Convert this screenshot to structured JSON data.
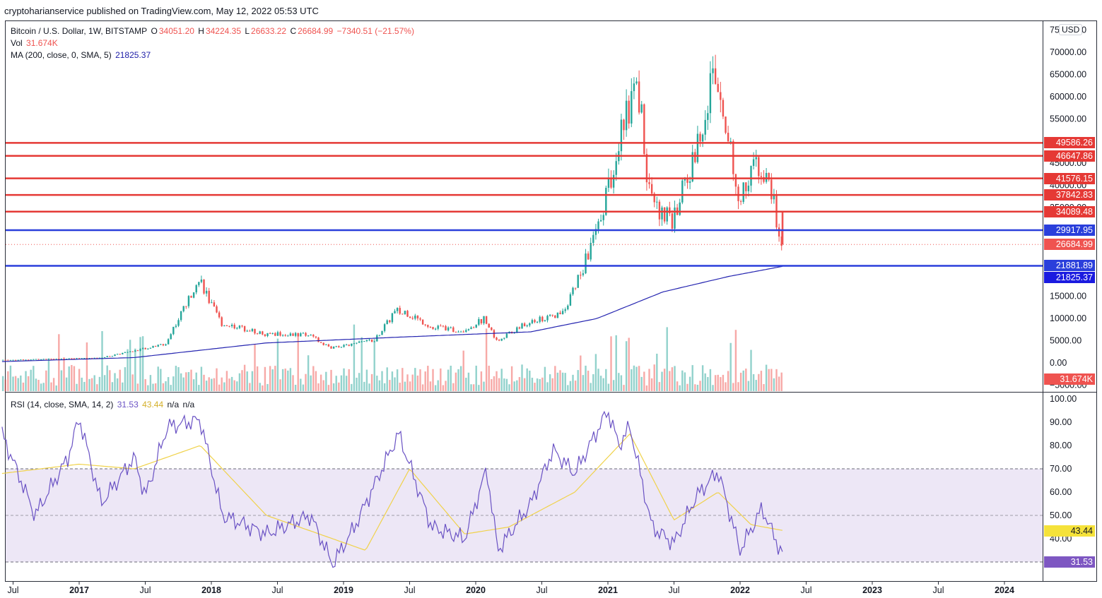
{
  "publisher": "cryptoharianservice published on TradingView.com, May 12, 2022 05:53 UTC",
  "currency": "USD",
  "legend": {
    "symbol": "Bitcoin / U.S. Dollar, 1W, BITSTAMP",
    "o_label": "O",
    "o": "34051.20",
    "h_label": "H",
    "h": "34224.35",
    "l_label": "L",
    "l": "26633.22",
    "c_label": "C",
    "c": "26684.99",
    "change": "−7340.51 (−21.57%)",
    "vol_label": "Vol",
    "vol": "31.674K",
    "ma_label": "MA (200, close, 0, SMA, 5)",
    "ma": "21825.37"
  },
  "rsi_legend": {
    "label": "RSI (14, close, SMA, 14, 2)",
    "rsi": "31.53",
    "sma": "43.44",
    "na1": "n/a",
    "na2": "n/a"
  },
  "price_axis": [
    "75000.00",
    "70000.00",
    "65000.00",
    "60000.00",
    "55000.00",
    "45000.00",
    "40000.00",
    "35000.00",
    "15000.00",
    "10000.00",
    "5000.00",
    "0.00",
    "−5000.00"
  ],
  "rsi_axis": [
    "100.00",
    "90.00",
    "80.00",
    "70.00",
    "60.00",
    "50.00",
    "40.00"
  ],
  "time_axis": [
    {
      "label": "Jul",
      "bold": false
    },
    {
      "label": "2017",
      "bold": true
    },
    {
      "label": "Jul",
      "bold": false
    },
    {
      "label": "2018",
      "bold": true
    },
    {
      "label": "Jul",
      "bold": false
    },
    {
      "label": "2019",
      "bold": true
    },
    {
      "label": "Jul",
      "bold": false
    },
    {
      "label": "2020",
      "bold": true
    },
    {
      "label": "Jul",
      "bold": false
    },
    {
      "label": "2021",
      "bold": true
    },
    {
      "label": "Jul",
      "bold": false
    },
    {
      "label": "2022",
      "bold": true
    },
    {
      "label": "Jul",
      "bold": false
    },
    {
      "label": "2023",
      "bold": true
    },
    {
      "label": "Jul",
      "bold": false
    },
    {
      "label": "2024",
      "bold": true
    }
  ],
  "colors": {
    "up": "#26a69a",
    "down": "#ef5350",
    "level_red": "#e53935",
    "level_blue": "#2a3fdb",
    "ma": "#2424b0",
    "rsi": "#6a52c4",
    "rsi_sma": "#f0d24a",
    "rsi_band": "#ede7f6"
  },
  "chart_data": {
    "type": "candlestick",
    "title": "Bitcoin / U.S. Dollar, 1W, BITSTAMP",
    "ylim": [
      -5000,
      75000
    ],
    "levels": [
      {
        "value": 49586.26,
        "label": "49586.26",
        "color": "red"
      },
      {
        "value": 46647.86,
        "label": "46647.86",
        "color": "red"
      },
      {
        "value": 41576.15,
        "label": "41576.15",
        "color": "red"
      },
      {
        "value": 37842.83,
        "label": "37842.83",
        "color": "red"
      },
      {
        "value": 34089.48,
        "label": "34089.48",
        "color": "red"
      },
      {
        "value": 29917.95,
        "label": "29917.95",
        "color": "blue"
      },
      {
        "value": 21881.89,
        "label": "21881.89",
        "color": "blue"
      }
    ],
    "last_price": {
      "value": 26684.99,
      "label": "26684.99"
    },
    "ma_last": {
      "value": 21825.37,
      "label": "21825.37"
    },
    "vol_last": {
      "label": "31.674K"
    },
    "price_path": [
      [
        "2016-06",
        650
      ],
      [
        "2016-12",
        960
      ],
      [
        "2017-03",
        1100
      ],
      [
        "2017-06",
        2600
      ],
      [
        "2017-09",
        4300
      ],
      [
        "2017-12",
        19000
      ],
      [
        "2018-02",
        9000
      ],
      [
        "2018-06",
        6500
      ],
      [
        "2018-10",
        6400
      ],
      [
        "2018-12",
        3300
      ],
      [
        "2019-04",
        5200
      ],
      [
        "2019-06",
        12000
      ],
      [
        "2019-09",
        8300
      ],
      [
        "2019-12",
        7200
      ],
      [
        "2020-02",
        10000
      ],
      [
        "2020-03",
        5000
      ],
      [
        "2020-06",
        9200
      ],
      [
        "2020-09",
        10800
      ],
      [
        "2020-12",
        28000
      ],
      [
        "2021-01",
        38000
      ],
      [
        "2021-03",
        58000
      ],
      [
        "2021-04",
        60000
      ],
      [
        "2021-05",
        36000
      ],
      [
        "2021-07",
        32000
      ],
      [
        "2021-09",
        47000
      ],
      [
        "2021-11",
        67000
      ],
      [
        "2022-01",
        38000
      ],
      [
        "2022-03",
        45000
      ],
      [
        "2022-04",
        38000
      ],
      [
        "2022-05",
        26684.99
      ]
    ],
    "ma_path": [
      [
        "2016-06",
        300
      ],
      [
        "2017-06",
        1200
      ],
      [
        "2018-06",
        4500
      ],
      [
        "2019-06",
        5800
      ],
      [
        "2020-06",
        7000
      ],
      [
        "2020-12",
        10000
      ],
      [
        "2021-06",
        16000
      ],
      [
        "2021-12",
        19500
      ],
      [
        "2022-05",
        21825.37
      ]
    ],
    "rsi": {
      "ylim": [
        30,
        100
      ],
      "band": [
        30,
        70
      ],
      "mid": 50,
      "last": {
        "value": 31.53,
        "label": "31.53"
      },
      "sma_last": {
        "value": 43.44,
        "label": "43.44"
      },
      "path": [
        [
          "2016-06",
          85
        ],
        [
          "2016-09",
          50
        ],
        [
          "2016-12",
          75
        ],
        [
          "2017-01",
          92
        ],
        [
          "2017-03",
          55
        ],
        [
          "2017-06",
          75
        ],
        [
          "2017-07",
          58
        ],
        [
          "2017-09",
          88
        ],
        [
          "2017-12",
          91
        ],
        [
          "2018-02",
          50
        ],
        [
          "2018-06",
          42
        ],
        [
          "2018-10",
          50
        ],
        [
          "2018-12",
          29
        ],
        [
          "2019-02",
          45
        ],
        [
          "2019-06",
          85
        ],
        [
          "2019-09",
          45
        ],
        [
          "2019-12",
          40
        ],
        [
          "2020-02",
          70
        ],
        [
          "2020-03",
          35
        ],
        [
          "2020-06",
          55
        ],
        [
          "2020-08",
          78
        ],
        [
          "2020-10",
          68
        ],
        [
          "2021-01",
          95
        ],
        [
          "2021-02",
          80
        ],
        [
          "2021-03",
          88
        ],
        [
          "2021-05",
          45
        ],
        [
          "2021-07",
          38
        ],
        [
          "2021-09",
          58
        ],
        [
          "2021-11",
          69
        ],
        [
          "2022-01",
          35
        ],
        [
          "2022-03",
          53
        ],
        [
          "2022-04",
          42
        ],
        [
          "2022-05",
          31.53
        ]
      ],
      "sma_path": [
        [
          "2016-06",
          68
        ],
        [
          "2017-01",
          72
        ],
        [
          "2017-06",
          70
        ],
        [
          "2017-12",
          80
        ],
        [
          "2018-06",
          50
        ],
        [
          "2018-12",
          40
        ],
        [
          "2019-03",
          35
        ],
        [
          "2019-07",
          70
        ],
        [
          "2019-12",
          42
        ],
        [
          "2020-04",
          45
        ],
        [
          "2020-10",
          60
        ],
        [
          "2021-03",
          85
        ],
        [
          "2021-07",
          48
        ],
        [
          "2021-11",
          60
        ],
        [
          "2022-02",
          46
        ],
        [
          "2022-05",
          43.44
        ]
      ]
    }
  }
}
